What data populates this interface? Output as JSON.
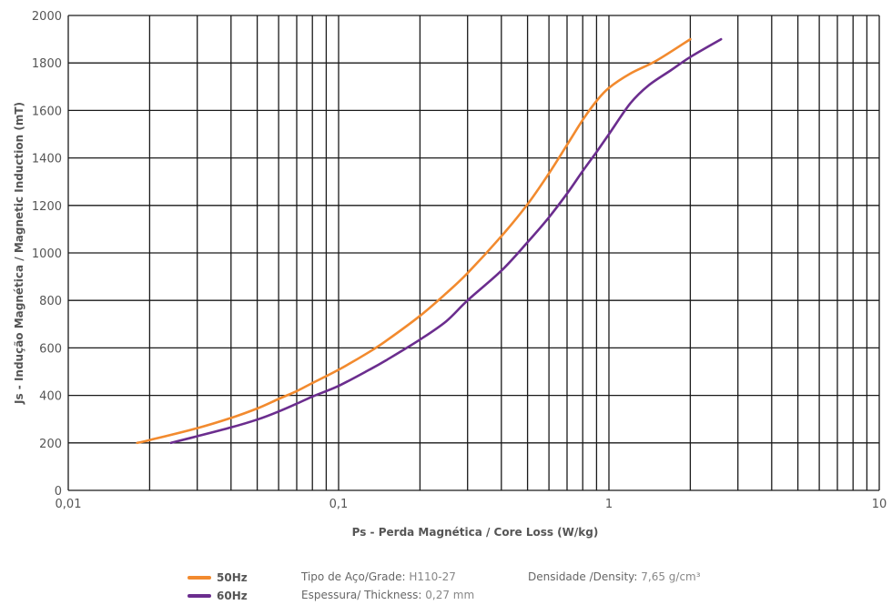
{
  "chart_data": {
    "type": "line",
    "x_scale": "log",
    "xlim": [
      0.01,
      10
    ],
    "ylim": [
      0,
      2000
    ],
    "xlabel": "Ps - Perda Magnética / Core Loss (W/kg)",
    "ylabel": "Js - Indução Magnética / Magnetic Induction (mT)",
    "x_tick_labels": [
      {
        "value": 0.01,
        "label": "0,01"
      },
      {
        "value": 0.1,
        "label": "0,1"
      },
      {
        "value": 1,
        "label": "1"
      },
      {
        "value": 10,
        "label": "10"
      }
    ],
    "y_ticks": [
      0,
      200,
      400,
      600,
      800,
      1000,
      1200,
      1400,
      1600,
      1800,
      2000
    ],
    "grid": true,
    "series": [
      {
        "name": "50Hz",
        "color": "#f28a2e",
        "points": [
          [
            0.018,
            200
          ],
          [
            0.02,
            212
          ],
          [
            0.03,
            262
          ],
          [
            0.04,
            305
          ],
          [
            0.05,
            345
          ],
          [
            0.06,
            385
          ],
          [
            0.07,
            418
          ],
          [
            0.08,
            452
          ],
          [
            0.1,
            508
          ],
          [
            0.13,
            583
          ],
          [
            0.15,
            630
          ],
          [
            0.2,
            735
          ],
          [
            0.25,
            830
          ],
          [
            0.3,
            915
          ],
          [
            0.4,
            1070
          ],
          [
            0.5,
            1205
          ],
          [
            0.6,
            1335
          ],
          [
            0.7,
            1455
          ],
          [
            0.8,
            1560
          ],
          [
            0.9,
            1640
          ],
          [
            1.0,
            1695
          ],
          [
            1.2,
            1755
          ],
          [
            1.5,
            1810
          ],
          [
            2.0,
            1900
          ]
        ]
      },
      {
        "name": "60Hz",
        "color": "#6b2d8e",
        "points": [
          [
            0.024,
            200
          ],
          [
            0.03,
            228
          ],
          [
            0.04,
            265
          ],
          [
            0.05,
            298
          ],
          [
            0.06,
            332
          ],
          [
            0.07,
            365
          ],
          [
            0.08,
            395
          ],
          [
            0.1,
            440
          ],
          [
            0.13,
            508
          ],
          [
            0.15,
            548
          ],
          [
            0.2,
            635
          ],
          [
            0.25,
            712
          ],
          [
            0.3,
            800
          ],
          [
            0.4,
            925
          ],
          [
            0.5,
            1045
          ],
          [
            0.6,
            1150
          ],
          [
            0.7,
            1250
          ],
          [
            0.8,
            1345
          ],
          [
            0.9,
            1425
          ],
          [
            1.0,
            1500
          ],
          [
            1.2,
            1630
          ],
          [
            1.4,
            1705
          ],
          [
            1.7,
            1770
          ],
          [
            2.0,
            1825
          ],
          [
            2.6,
            1900
          ]
        ]
      }
    ]
  },
  "legend": [
    {
      "label": "50Hz",
      "color": "#f28a2e"
    },
    {
      "label": "60Hz",
      "color": "#6b2d8e"
    }
  ],
  "info": {
    "grade_key": "Tipo de Aço/Grade: ",
    "grade_value": "H110-27",
    "thickness_key": "Espessura/ Thickness: ",
    "thickness_value": "0,27 mm",
    "density_key": "Densidade /Density: ",
    "density_value": "7,65 g/cm³"
  }
}
